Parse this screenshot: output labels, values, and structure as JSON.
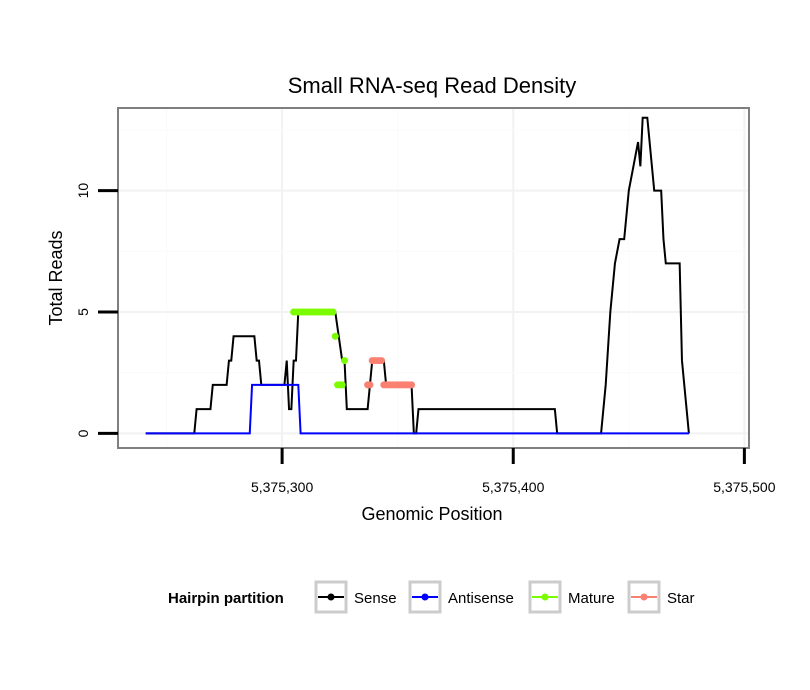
{
  "chart_data": {
    "type": "line",
    "title": "Small RNA-seq Read Density",
    "xlabel": "Genomic Position",
    "ylabel": "Total Reads",
    "xlim": [
      5375229,
      5375502
    ],
    "ylim": [
      -0.6,
      13.4
    ],
    "x_ticks": [
      5375300,
      5375400,
      5375500
    ],
    "x_tick_labels": [
      "5,375,300",
      "5,375,400",
      "5,375,500"
    ],
    "y_ticks": [
      0,
      5,
      10
    ],
    "y_tick_labels": [
      "0",
      "5",
      "10"
    ],
    "grid": true,
    "legend": {
      "title": "Hairpin partition",
      "position": "bottom",
      "entries": [
        {
          "label": "Sense",
          "color": "#000000"
        },
        {
          "label": "Antisense",
          "color": "#0000ff"
        },
        {
          "label": "Mature",
          "color": "#7cfc00"
        },
        {
          "label": "Star",
          "color": "#fa8072"
        }
      ]
    },
    "series": [
      {
        "name": "Sense",
        "color": "#000000",
        "style": "line",
        "points": [
          [
            5375241,
            0
          ],
          [
            5375262,
            0
          ],
          [
            5375263,
            1
          ],
          [
            5375269,
            1
          ],
          [
            5375270,
            2
          ],
          [
            5375276,
            2
          ],
          [
            5375277,
            3
          ],
          [
            5375278,
            3
          ],
          [
            5375279,
            4
          ],
          [
            5375288,
            4
          ],
          [
            5375289,
            3
          ],
          [
            5375290,
            3
          ],
          [
            5375291,
            2
          ],
          [
            5375301,
            2
          ],
          [
            5375302,
            3
          ],
          [
            5375303,
            1
          ],
          [
            5375304,
            1
          ],
          [
            5375305,
            3
          ],
          [
            5375306,
            3
          ],
          [
            5375307,
            5
          ],
          [
            5375323,
            5
          ],
          [
            5375326,
            3
          ],
          [
            5375327,
            3
          ],
          [
            5375328,
            1
          ],
          [
            5375337,
            1
          ],
          [
            5375338,
            2
          ],
          [
            5375339,
            3
          ],
          [
            5375344,
            3
          ],
          [
            5375345,
            2
          ],
          [
            5375356,
            2
          ],
          [
            5375357,
            0
          ],
          [
            5375358,
            0
          ],
          [
            5375359,
            1
          ],
          [
            5375418,
            1
          ],
          [
            5375419,
            0
          ],
          [
            5375438,
            0
          ],
          [
            5375440,
            2
          ],
          [
            5375442,
            5
          ],
          [
            5375444,
            7
          ],
          [
            5375446,
            8
          ],
          [
            5375448,
            8
          ],
          [
            5375450,
            10
          ],
          [
            5375452,
            11
          ],
          [
            5375454,
            12
          ],
          [
            5375455,
            11
          ],
          [
            5375456,
            13
          ],
          [
            5375458,
            13
          ],
          [
            5375459,
            12
          ],
          [
            5375460,
            11
          ],
          [
            5375461,
            10
          ],
          [
            5375464,
            10
          ],
          [
            5375465,
            8
          ],
          [
            5375466,
            7
          ],
          [
            5375472,
            7
          ],
          [
            5375473,
            3
          ],
          [
            5375474,
            2
          ],
          [
            5375475,
            1
          ],
          [
            5375476,
            0
          ]
        ]
      },
      {
        "name": "Antisense",
        "color": "#0000ff",
        "style": "line",
        "points": [
          [
            5375241,
            0
          ],
          [
            5375286,
            0
          ],
          [
            5375287,
            2
          ],
          [
            5375307,
            2
          ],
          [
            5375308,
            0
          ],
          [
            5375476,
            0
          ]
        ]
      },
      {
        "name": "Mature",
        "color": "#7cfc00",
        "style": "points",
        "points": [
          [
            5375305,
            5
          ],
          [
            5375306,
            5
          ],
          [
            5375307,
            5
          ],
          [
            5375308,
            5
          ],
          [
            5375309,
            5
          ],
          [
            5375310,
            5
          ],
          [
            5375311,
            5
          ],
          [
            5375312,
            5
          ],
          [
            5375313,
            5
          ],
          [
            5375314,
            5
          ],
          [
            5375315,
            5
          ],
          [
            5375316,
            5
          ],
          [
            5375317,
            5
          ],
          [
            5375318,
            5
          ],
          [
            5375319,
            5
          ],
          [
            5375320,
            5
          ],
          [
            5375321,
            5
          ],
          [
            5375322,
            5
          ],
          [
            5375323,
            4
          ],
          [
            5375324,
            2
          ],
          [
            5375325,
            2
          ],
          [
            5375326,
            2
          ],
          [
            5375327,
            3
          ]
        ]
      },
      {
        "name": "Star",
        "color": "#fa8072",
        "style": "points",
        "points": [
          [
            5375337,
            2
          ],
          [
            5375338,
            2
          ],
          [
            5375339,
            3
          ],
          [
            5375340,
            3
          ],
          [
            5375341,
            3
          ],
          [
            5375342,
            3
          ],
          [
            5375343,
            3
          ],
          [
            5375344,
            2
          ],
          [
            5375345,
            2
          ],
          [
            5375346,
            2
          ],
          [
            5375347,
            2
          ],
          [
            5375348,
            2
          ],
          [
            5375349,
            2
          ],
          [
            5375350,
            2
          ],
          [
            5375351,
            2
          ],
          [
            5375352,
            2
          ],
          [
            5375353,
            2
          ],
          [
            5375354,
            2
          ],
          [
            5375355,
            2
          ],
          [
            5375356,
            2
          ]
        ]
      }
    ]
  }
}
